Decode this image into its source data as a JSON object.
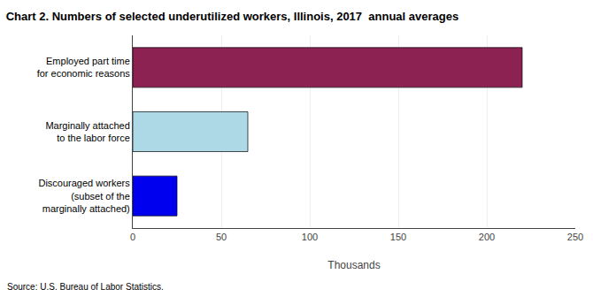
{
  "chart_data": {
    "type": "bar",
    "orientation": "horizontal",
    "title": "Chart 2. Numbers of selected underutilized workers, Illinois, 2017  annual averages",
    "categories": [
      "Employed part time\nfor economic reasons",
      "Marginally attached\nto the labor force",
      "Discouraged workers\n(subset of the\nmarginally attached)"
    ],
    "values": [
      220,
      65,
      25
    ],
    "colors": [
      "#8B2252",
      "#ADD8E6",
      "#0000EE"
    ],
    "xlabel": "Thousands",
    "xlim": [
      0,
      250
    ],
    "xticks": [
      0,
      50,
      100,
      150,
      200,
      250
    ],
    "grid": true,
    "annotations": [
      "Source: U.S. Bureau of Labor Statistics."
    ]
  }
}
